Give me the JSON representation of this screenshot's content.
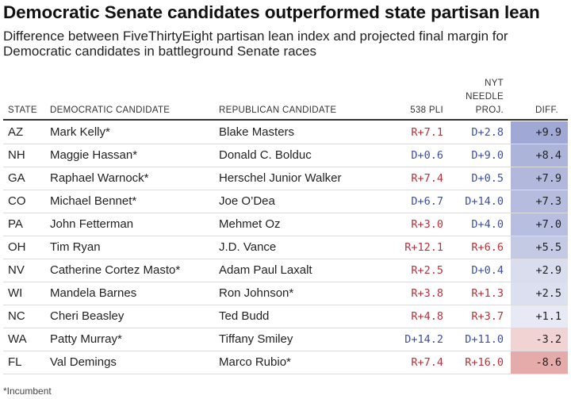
{
  "title": "Democratic Senate candidates outperformed state partisan lean",
  "subtitle": "Difference between FiveThirtyEight partisan lean index and projected final margin for Democratic candidates in battleground Senate races",
  "headers": {
    "state": "STATE",
    "dem": "DEMOCRATIC CANDIDATE",
    "rep": "REPUBLICAN CANDIDATE",
    "pli": "538 PLI",
    "needle_1": "NYT",
    "needle_2": "NEEDLE",
    "needle_3": "PROJ.",
    "diff": "DIFF."
  },
  "colors": {
    "dem_text": "#3f4f98",
    "rep_text": "#b5333a"
  },
  "rows": [
    {
      "state": "AZ",
      "dem": "Mark Kelly*",
      "rep": "Blake Masters",
      "pli": "R+7.1",
      "needle": "D+2.8",
      "diff": "+9.9",
      "diff_value": 9.9
    },
    {
      "state": "NH",
      "dem": "Maggie Hassan*",
      "rep": "Donald C. Bolduc",
      "pli": "D+0.6",
      "needle": "D+9.0",
      "diff": "+8.4",
      "diff_value": 8.4
    },
    {
      "state": "GA",
      "dem": "Raphael Warnock*",
      "rep": "Herschel Junior Walker",
      "pli": "R+7.4",
      "needle": "D+0.5",
      "diff": "+7.9",
      "diff_value": 7.9
    },
    {
      "state": "CO",
      "dem": "Michael Bennet*",
      "rep": "Joe O’Dea",
      "pli": "D+6.7",
      "needle": "D+14.0",
      "diff": "+7.3",
      "diff_value": 7.3
    },
    {
      "state": "PA",
      "dem": "John Fetterman",
      "rep": "Mehmet Oz",
      "pli": "R+3.0",
      "needle": "D+4.0",
      "diff": "+7.0",
      "diff_value": 7.0
    },
    {
      "state": "OH",
      "dem": "Tim Ryan",
      "rep": "J.D. Vance",
      "pli": "R+12.1",
      "needle": "R+6.6",
      "diff": "+5.5",
      "diff_value": 5.5
    },
    {
      "state": "NV",
      "dem": "Catherine Cortez Masto*",
      "rep": "Adam Paul Laxalt",
      "pli": "R+2.5",
      "needle": "D+0.4",
      "diff": "+2.9",
      "diff_value": 2.9
    },
    {
      "state": "WI",
      "dem": "Mandela Barnes",
      "rep": "Ron Johnson*",
      "pli": "R+3.8",
      "needle": "R+1.3",
      "diff": "+2.5",
      "diff_value": 2.5
    },
    {
      "state": "NC",
      "dem": "Cheri Beasley",
      "rep": "Ted Budd",
      "pli": "R+4.8",
      "needle": "R+3.7",
      "diff": "+1.1",
      "diff_value": 1.1
    },
    {
      "state": "WA",
      "dem": "Patty Murray*",
      "rep": "Tiffany Smiley",
      "pli": "D+14.2",
      "needle": "D+11.0",
      "diff": "-3.2",
      "diff_value": -3.2
    },
    {
      "state": "FL",
      "dem": "Val Demings",
      "rep": "Marco Rubio*",
      "pli": "R+7.4",
      "needle": "R+16.0",
      "diff": "-8.6",
      "diff_value": -8.6
    }
  ],
  "footnote": "*Incumbent"
}
